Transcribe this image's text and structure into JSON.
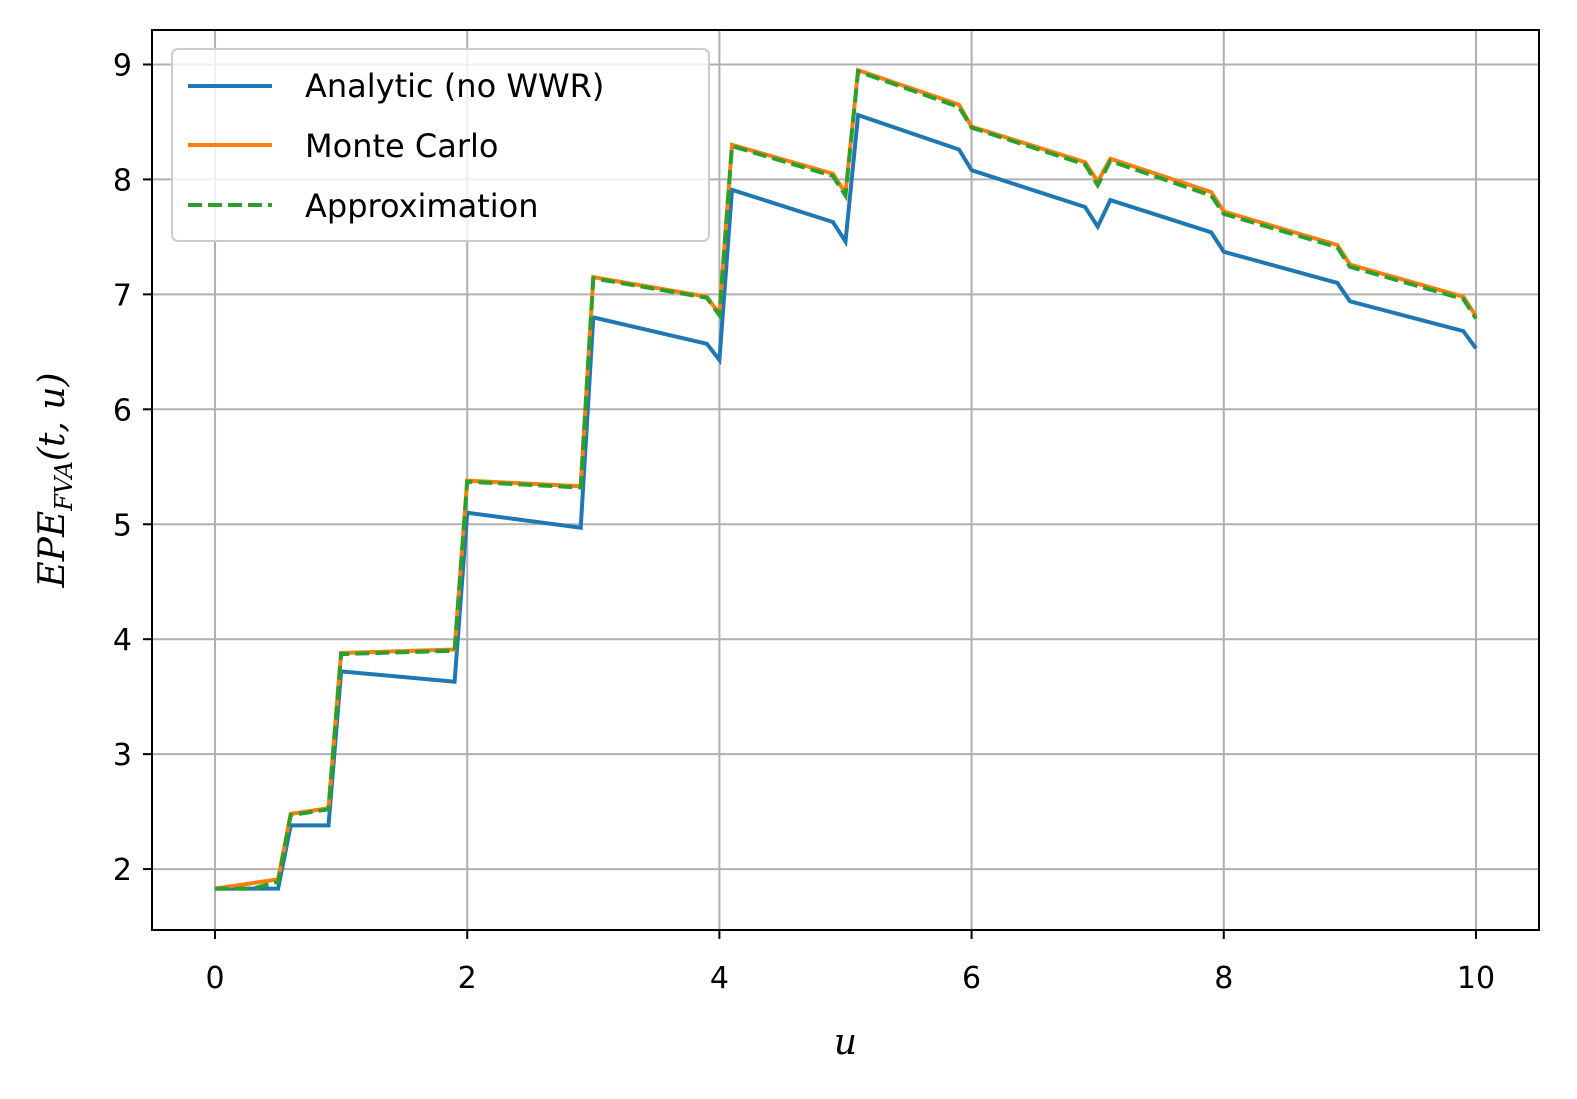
{
  "chart_data": {
    "type": "line",
    "xlabel": "u",
    "ylabel_main": "EPE",
    "ylabel_sub": "FVA",
    "ylabel_args": "(t, u)",
    "xlim": [
      -0.5,
      10.5
    ],
    "ylim": [
      1.47,
      9.3
    ],
    "xticks": [
      0,
      2,
      4,
      6,
      8,
      10
    ],
    "yticks": [
      2,
      3,
      4,
      5,
      6,
      7,
      8,
      9
    ],
    "grid": true,
    "legend_position": "upper-left",
    "series": [
      {
        "name": "Analytic (no WWR)",
        "color": "#1f77b4",
        "style": "solid",
        "x": [
          0,
          0.5,
          0.6,
          0.9,
          1.0,
          1.9,
          2.0,
          2.9,
          3.0,
          3.9,
          4.0,
          4.1,
          4.9,
          5.0,
          5.1,
          5.9,
          6.0,
          6.9,
          7.0,
          7.1,
          7.9,
          8.0,
          8.9,
          9.0,
          9.9,
          10.0
        ],
        "y": [
          1.83,
          1.83,
          2.38,
          2.38,
          3.72,
          3.63,
          5.1,
          4.97,
          6.8,
          6.57,
          6.43,
          7.91,
          7.63,
          7.46,
          8.56,
          8.26,
          8.08,
          7.76,
          7.59,
          7.82,
          7.54,
          7.37,
          7.1,
          6.94,
          6.68,
          6.53
        ]
      },
      {
        "name": "Monte Carlo",
        "color": "#ff7f0e",
        "style": "solid",
        "x": [
          0,
          0.5,
          0.6,
          0.9,
          1.0,
          1.9,
          2.0,
          2.9,
          3.0,
          3.9,
          4.0,
          4.1,
          4.9,
          5.0,
          5.1,
          5.9,
          6.0,
          6.9,
          7.0,
          7.1,
          7.9,
          8.0,
          8.9,
          9.0,
          9.9,
          10.0
        ],
        "y": [
          1.83,
          1.91,
          2.48,
          2.53,
          3.88,
          3.91,
          5.38,
          5.33,
          7.15,
          6.98,
          6.83,
          8.3,
          8.05,
          7.88,
          8.95,
          8.65,
          8.46,
          8.15,
          7.98,
          8.18,
          7.89,
          7.72,
          7.43,
          7.26,
          6.98,
          6.81
        ]
      },
      {
        "name": "Approximation",
        "color": "#2ca02c",
        "style": "dashed",
        "x": [
          0,
          0.3,
          0.5,
          0.6,
          0.9,
          1.0,
          1.9,
          2.0,
          2.9,
          3.0,
          3.9,
          4.0,
          4.1,
          4.9,
          5.0,
          5.1,
          5.9,
          6.0,
          6.9,
          7.0,
          7.1,
          7.9,
          8.0,
          8.9,
          9.0,
          9.9,
          10.0
        ],
        "y": [
          1.83,
          1.83,
          1.89,
          2.47,
          2.52,
          3.87,
          3.9,
          5.37,
          5.32,
          7.14,
          6.97,
          6.82,
          8.29,
          8.03,
          7.86,
          8.94,
          8.63,
          8.45,
          8.13,
          7.95,
          8.16,
          7.86,
          7.7,
          7.41,
          7.24,
          6.96,
          6.79
        ]
      }
    ]
  }
}
